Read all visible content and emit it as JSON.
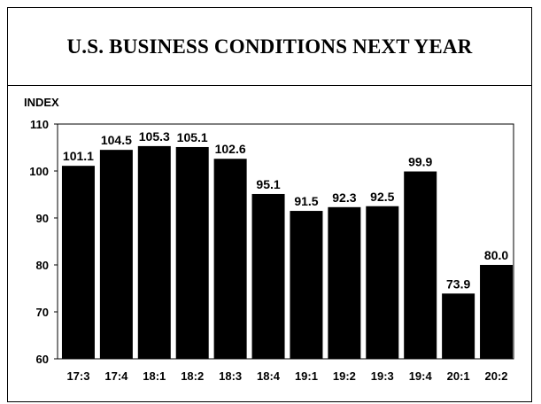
{
  "chart_data": {
    "type": "bar",
    "title": "U.S. BUSINESS CONDITIONS NEXT YEAR",
    "ylabel": "INDEX",
    "xlabel": "",
    "ylim": [
      60,
      110
    ],
    "yticks": [
      60,
      70,
      80,
      90,
      100,
      110
    ],
    "grid": false,
    "categories": [
      "17:3",
      "17:4",
      "18:1",
      "18:2",
      "18:3",
      "18:4",
      "19:1",
      "19:2",
      "19:3",
      "19:4",
      "20:1",
      "20:2"
    ],
    "values": [
      101.1,
      104.5,
      105.3,
      105.1,
      102.6,
      95.1,
      91.5,
      92.3,
      92.5,
      99.9,
      73.9,
      80.0
    ],
    "value_labels": [
      "101.1",
      "104.5",
      "105.3",
      "105.1",
      "102.6",
      "95.1",
      "91.5",
      "92.3",
      "92.5",
      "99.9",
      "73.9",
      "80.0"
    ],
    "colors": {
      "bar": "#000000",
      "background": "#ffffff"
    }
  }
}
